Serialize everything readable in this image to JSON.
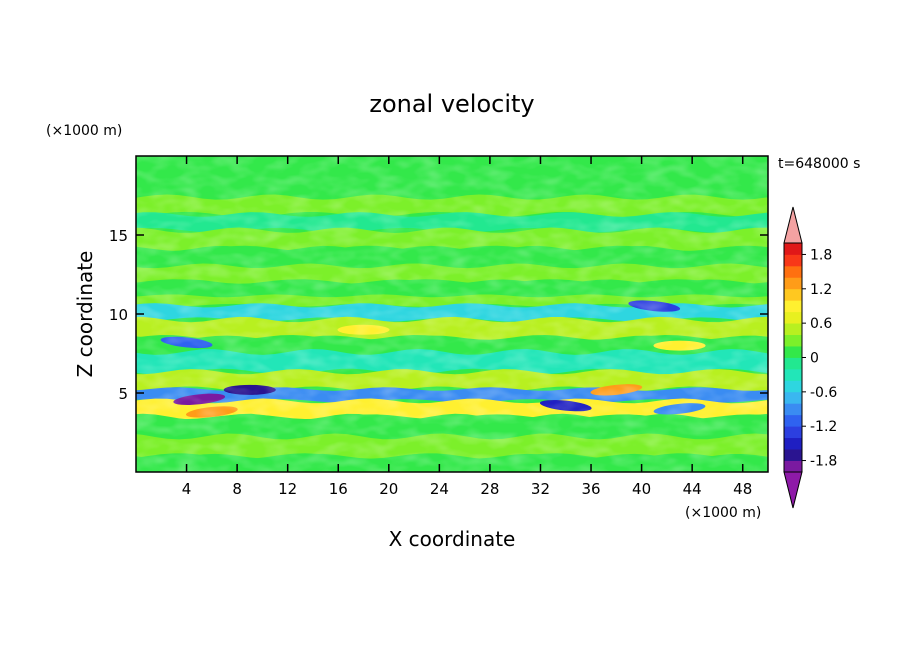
{
  "chart_data": {
    "type": "heatmap",
    "title": "zonal velocity",
    "xlabel": "X coordinate",
    "ylabel": "Z coordinate",
    "x_unit_label": "(×1000 m)",
    "y_unit_label": "(×1000 m)",
    "time_label": "t=648000 s",
    "xlim": [
      0,
      50
    ],
    "ylim": [
      0,
      20
    ],
    "x_ticks": [
      4,
      8,
      12,
      16,
      20,
      24,
      28,
      32,
      36,
      40,
      44,
      48
    ],
    "y_ticks": [
      5,
      10,
      15
    ],
    "colorbar": {
      "levels": [
        -2.0,
        -1.8,
        -1.6,
        -1.4,
        -1.2,
        -1.0,
        -0.8,
        -0.6,
        -0.4,
        -0.2,
        0,
        0.2,
        0.4,
        0.6,
        0.8,
        1.0,
        1.2,
        1.4,
        1.6,
        1.8,
        2.0
      ],
      "colors": [
        "#7a1aa0",
        "#2a1490",
        "#1f1fc2",
        "#2c3fe0",
        "#2f62f0",
        "#3a8cf2",
        "#3ab7f0",
        "#2ed6e0",
        "#22e6b8",
        "#22e890",
        "#33e84a",
        "#7cf02a",
        "#b8f020",
        "#e8f020",
        "#fff030",
        "#ffc820",
        "#ff9c18",
        "#ff7010",
        "#f83818",
        "#e01818"
      ],
      "under_color": "#8e1aa8",
      "over_color": "#f4a2a2",
      "tick_labels": [
        "1.8",
        "1.2",
        "0.6",
        "0",
        "-0.6",
        "-1.2",
        "-1.8"
      ]
    },
    "bands": [
      {
        "z": 18.0,
        "value": 0.05
      },
      {
        "z": 16.8,
        "value": 0.3
      },
      {
        "z": 15.8,
        "value": -0.05
      },
      {
        "z": 14.8,
        "value": 0.3
      },
      {
        "z": 13.5,
        "value": 0.05
      },
      {
        "z": 12.6,
        "value": 0.3
      },
      {
        "z": 11.5,
        "value": 0.05
      },
      {
        "z": 10.8,
        "value": 0.25
      },
      {
        "z": 10.3,
        "value": -0.45
      },
      {
        "z": 9.0,
        "value": 0.55
      },
      {
        "z": 8.0,
        "value": 0.0
      },
      {
        "z": 7.2,
        "value": -0.3
      },
      {
        "z": 5.5,
        "value": 0.4
      },
      {
        "z": 5.0,
        "value": -1.0
      },
      {
        "z": 4.0,
        "value": 0.8
      },
      {
        "z": 3.0,
        "value": 0.1
      },
      {
        "z": 1.5,
        "value": 0.2
      },
      {
        "z": 0.5,
        "value": 0.0
      }
    ],
    "features": [
      {
        "x": 5.0,
        "z": 4.6,
        "value": -1.9
      },
      {
        "x": 9.0,
        "z": 5.2,
        "value": -1.7
      },
      {
        "x": 4.0,
        "z": 8.2,
        "value": -1.2
      },
      {
        "x": 6.0,
        "z": 3.8,
        "value": 1.3
      },
      {
        "x": 18.0,
        "z": 9.0,
        "value": 0.8
      },
      {
        "x": 34.0,
        "z": 4.2,
        "value": -1.5
      },
      {
        "x": 38.0,
        "z": 5.2,
        "value": 1.3
      },
      {
        "x": 43.0,
        "z": 8.0,
        "value": 0.8
      },
      {
        "x": 41.0,
        "z": 10.5,
        "value": -1.4
      },
      {
        "x": 43.0,
        "z": 4.0,
        "value": -1.0
      }
    ]
  }
}
